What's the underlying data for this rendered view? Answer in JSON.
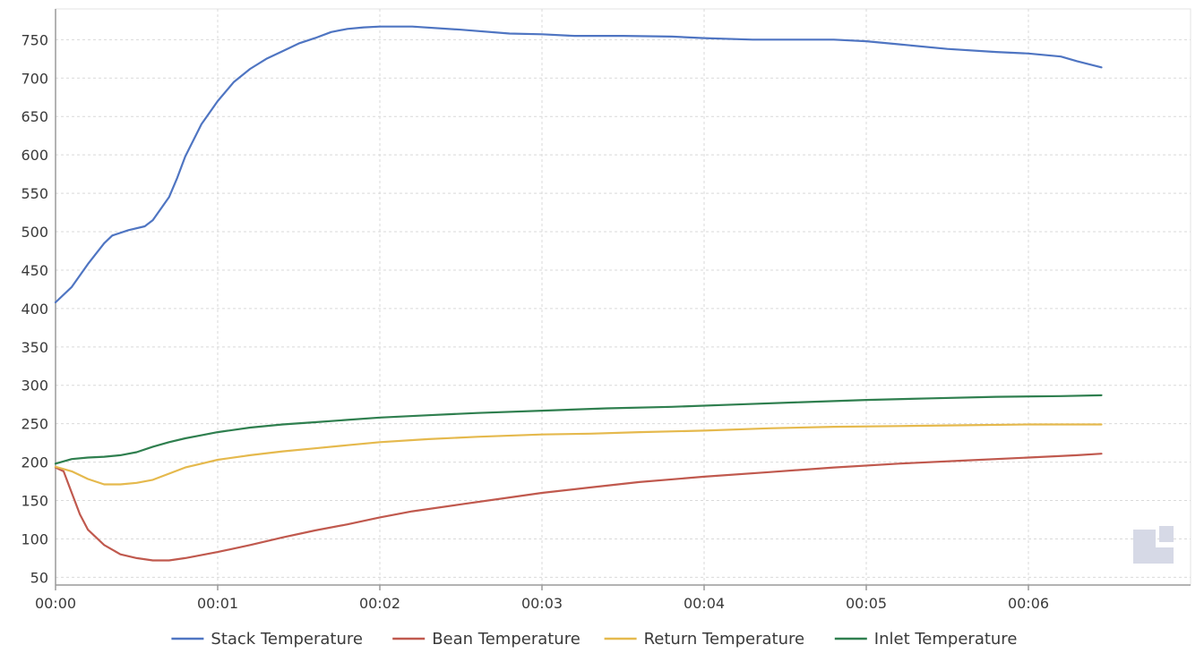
{
  "chart_data": {
    "type": "line",
    "title": "",
    "xlabel": "",
    "ylabel": "",
    "x_unit": "minutes",
    "xlim": [
      0,
      7.0
    ],
    "ylim": [
      40,
      790
    ],
    "x_ticks": [
      {
        "value": 0,
        "label": "00:00"
      },
      {
        "value": 1,
        "label": "00:01"
      },
      {
        "value": 2,
        "label": "00:02"
      },
      {
        "value": 3,
        "label": "00:03"
      },
      {
        "value": 4,
        "label": "00:04"
      },
      {
        "value": 5,
        "label": "00:05"
      },
      {
        "value": 6,
        "label": "00:06"
      }
    ],
    "y_ticks": [
      50,
      100,
      150,
      200,
      250,
      300,
      350,
      400,
      450,
      500,
      550,
      600,
      650,
      700,
      750
    ],
    "grid": true,
    "legend_position": "bottom",
    "series": [
      {
        "name": "Stack Temperature",
        "color": "#4f75c2",
        "points": [
          [
            0,
            408
          ],
          [
            0.1,
            428
          ],
          [
            0.2,
            458
          ],
          [
            0.3,
            485
          ],
          [
            0.35,
            495
          ],
          [
            0.45,
            502
          ],
          [
            0.55,
            507
          ],
          [
            0.6,
            515
          ],
          [
            0.7,
            545
          ],
          [
            0.75,
            570
          ],
          [
            0.8,
            598
          ],
          [
            0.9,
            640
          ],
          [
            1.0,
            670
          ],
          [
            1.1,
            695
          ],
          [
            1.2,
            712
          ],
          [
            1.3,
            725
          ],
          [
            1.4,
            735
          ],
          [
            1.5,
            745
          ],
          [
            1.6,
            752
          ],
          [
            1.7,
            760
          ],
          [
            1.8,
            764
          ],
          [
            1.9,
            766
          ],
          [
            2.0,
            767
          ],
          [
            2.2,
            767
          ],
          [
            2.5,
            763
          ],
          [
            2.8,
            758
          ],
          [
            3.0,
            757
          ],
          [
            3.2,
            755
          ],
          [
            3.5,
            755
          ],
          [
            3.8,
            754
          ],
          [
            4.0,
            752
          ],
          [
            4.3,
            750
          ],
          [
            4.6,
            750
          ],
          [
            4.8,
            750
          ],
          [
            5.0,
            748
          ],
          [
            5.2,
            744
          ],
          [
            5.5,
            738
          ],
          [
            5.8,
            734
          ],
          [
            6.0,
            732
          ],
          [
            6.2,
            728
          ],
          [
            6.3,
            722
          ],
          [
            6.45,
            714
          ]
        ]
      },
      {
        "name": "Bean Temperature",
        "color": "#c0594e",
        "points": [
          [
            0,
            193
          ],
          [
            0.05,
            188
          ],
          [
            0.1,
            160
          ],
          [
            0.15,
            132
          ],
          [
            0.2,
            112
          ],
          [
            0.3,
            92
          ],
          [
            0.4,
            80
          ],
          [
            0.5,
            75
          ],
          [
            0.6,
            72
          ],
          [
            0.7,
            72
          ],
          [
            0.8,
            75
          ],
          [
            1.0,
            83
          ],
          [
            1.2,
            92
          ],
          [
            1.4,
            102
          ],
          [
            1.6,
            111
          ],
          [
            1.8,
            119
          ],
          [
            2.0,
            128
          ],
          [
            2.2,
            136
          ],
          [
            2.5,
            145
          ],
          [
            2.8,
            154
          ],
          [
            3.0,
            160
          ],
          [
            3.3,
            167
          ],
          [
            3.6,
            174
          ],
          [
            4.0,
            181
          ],
          [
            4.4,
            187
          ],
          [
            4.8,
            193
          ],
          [
            5.2,
            198
          ],
          [
            5.6,
            202
          ],
          [
            6.0,
            206
          ],
          [
            6.3,
            209
          ],
          [
            6.45,
            211
          ]
        ]
      },
      {
        "name": "Return Temperature",
        "color": "#e5b94d",
        "points": [
          [
            0,
            194
          ],
          [
            0.1,
            188
          ],
          [
            0.2,
            178
          ],
          [
            0.3,
            171
          ],
          [
            0.4,
            171
          ],
          [
            0.5,
            173
          ],
          [
            0.6,
            177
          ],
          [
            0.7,
            185
          ],
          [
            0.8,
            193
          ],
          [
            0.9,
            198
          ],
          [
            1.0,
            203
          ],
          [
            1.2,
            209
          ],
          [
            1.4,
            214
          ],
          [
            1.6,
            218
          ],
          [
            1.8,
            222
          ],
          [
            2.0,
            226
          ],
          [
            2.3,
            230
          ],
          [
            2.6,
            233
          ],
          [
            3.0,
            236
          ],
          [
            3.3,
            237
          ],
          [
            3.6,
            239
          ],
          [
            4.0,
            241
          ],
          [
            4.4,
            244
          ],
          [
            4.8,
            246
          ],
          [
            5.2,
            247
          ],
          [
            5.6,
            248
          ],
          [
            6.0,
            249
          ],
          [
            6.45,
            249
          ]
        ]
      },
      {
        "name": "Inlet Temperature",
        "color": "#2f7f4f",
        "points": [
          [
            0,
            198
          ],
          [
            0.1,
            204
          ],
          [
            0.2,
            206
          ],
          [
            0.3,
            207
          ],
          [
            0.4,
            209
          ],
          [
            0.5,
            213
          ],
          [
            0.6,
            220
          ],
          [
            0.7,
            226
          ],
          [
            0.8,
            231
          ],
          [
            0.9,
            235
          ],
          [
            1.0,
            239
          ],
          [
            1.2,
            245
          ],
          [
            1.4,
            249
          ],
          [
            1.6,
            252
          ],
          [
            1.8,
            255
          ],
          [
            2.0,
            258
          ],
          [
            2.3,
            261
          ],
          [
            2.6,
            264
          ],
          [
            3.0,
            267
          ],
          [
            3.4,
            270
          ],
          [
            3.8,
            272
          ],
          [
            4.2,
            275
          ],
          [
            4.6,
            278
          ],
          [
            5.0,
            281
          ],
          [
            5.4,
            283
          ],
          [
            5.8,
            285
          ],
          [
            6.2,
            286
          ],
          [
            6.45,
            287
          ]
        ]
      }
    ]
  }
}
